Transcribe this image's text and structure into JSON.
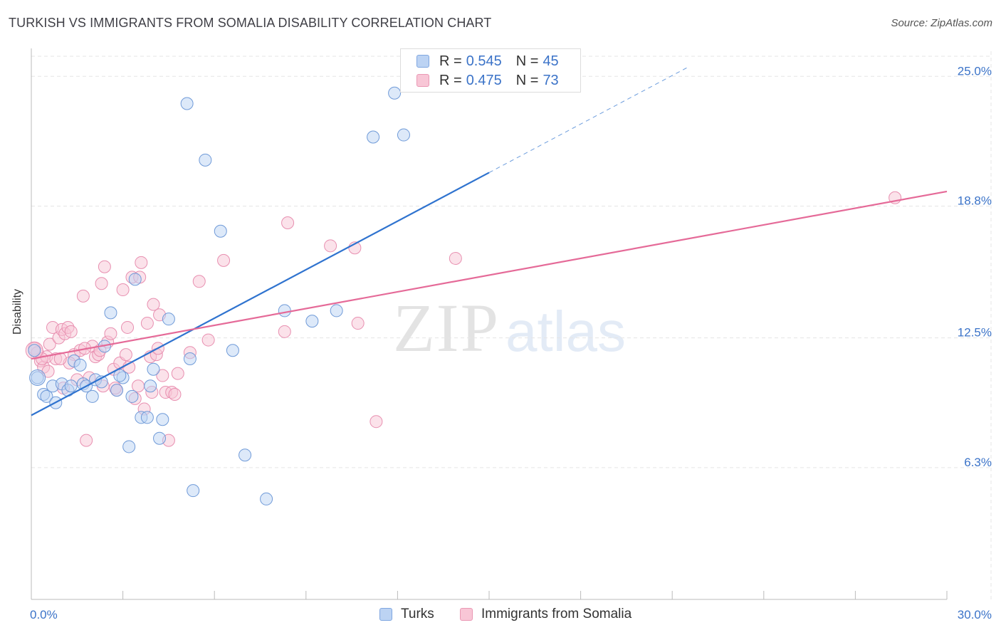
{
  "title": "TURKISH VS IMMIGRANTS FROM SOMALIA DISABILITY CORRELATION CHART",
  "source_label": "Source: ZipAtlas.com",
  "watermark": {
    "zip": "ZIP",
    "atlas": "atlas"
  },
  "stats": {
    "turks": {
      "r_label": "R =",
      "r": "0.545",
      "n_label": "N =",
      "n": "45"
    },
    "somalia": {
      "r_label": "R =",
      "r": "0.475",
      "n_label": "N =",
      "n": "73"
    }
  },
  "legend": {
    "turks": "Turks",
    "somalia": "Immigrants from Somalia"
  },
  "colors": {
    "blue_fill": "#bcd3f3",
    "blue_stroke": "#6f9ad8",
    "blue_line": "#2f73cf",
    "pink_fill": "#f8c6d6",
    "pink_stroke": "#e88fb0",
    "pink_line": "#e56a98",
    "grid": "#e5e5e5",
    "tick_text": "#3b73c8"
  },
  "chart_data": {
    "type": "scatter",
    "title": "TURKISH VS IMMIGRANTS FROM SOMALIA DISABILITY CORRELATION CHART",
    "xlabel": "",
    "ylabel": "Disability",
    "xlim": [
      0,
      30
    ],
    "ylim": [
      0,
      26.2
    ],
    "x_tick_labels": [
      {
        "value": 0,
        "label": "0.0%"
      },
      {
        "value": 30,
        "label": "30.0%"
      }
    ],
    "y_ticks": [
      {
        "value": 6.3,
        "label": "6.3%"
      },
      {
        "value": 12.5,
        "label": "12.5%"
      },
      {
        "value": 18.8,
        "label": "18.8%"
      },
      {
        "value": 25.0,
        "label": "25.0%"
      }
    ],
    "series": [
      {
        "name": "Turks",
        "r": 0.545,
        "n": 45,
        "trend": {
          "x0": 0,
          "y0": 8.8,
          "x1": 15,
          "y1": 20.4,
          "dash_to_x": 21.5
        },
        "points": [
          [
            0.1,
            11.9
          ],
          [
            0.2,
            10.6
          ],
          [
            0.4,
            9.8
          ],
          [
            0.5,
            9.7
          ],
          [
            0.7,
            10.2
          ],
          [
            0.8,
            9.4
          ],
          [
            1.0,
            10.3
          ],
          [
            1.2,
            10.0
          ],
          [
            1.3,
            10.2
          ],
          [
            1.4,
            11.4
          ],
          [
            1.6,
            11.2
          ],
          [
            1.7,
            10.3
          ],
          [
            1.8,
            10.2
          ],
          [
            2.0,
            9.7
          ],
          [
            2.1,
            10.5
          ],
          [
            2.3,
            10.4
          ],
          [
            2.4,
            12.1
          ],
          [
            2.6,
            13.7
          ],
          [
            2.8,
            10.0
          ],
          [
            3.0,
            10.6
          ],
          [
            3.2,
            7.3
          ],
          [
            3.3,
            9.7
          ],
          [
            3.4,
            15.3
          ],
          [
            3.6,
            8.7
          ],
          [
            3.8,
            8.7
          ],
          [
            3.9,
            10.2
          ],
          [
            4.0,
            11.0
          ],
          [
            4.2,
            7.7
          ],
          [
            4.3,
            8.6
          ],
          [
            4.5,
            13.4
          ],
          [
            5.1,
            23.7
          ],
          [
            5.2,
            11.5
          ],
          [
            5.3,
            5.2
          ],
          [
            5.7,
            21.0
          ],
          [
            6.2,
            17.6
          ],
          [
            6.6,
            11.9
          ],
          [
            7.0,
            6.9
          ],
          [
            7.7,
            4.8
          ],
          [
            8.3,
            13.8
          ],
          [
            9.2,
            13.3
          ],
          [
            10.0,
            13.8
          ],
          [
            11.2,
            22.1
          ],
          [
            11.9,
            24.2
          ],
          [
            12.2,
            22.2
          ],
          [
            2.9,
            10.7
          ]
        ]
      },
      {
        "name": "Immigrants from Somalia",
        "r": 0.475,
        "n": 73,
        "trend": {
          "x0": 0,
          "y0": 11.5,
          "x1": 30,
          "y1": 19.5
        },
        "points": [
          [
            0.1,
            12.0
          ],
          [
            0.2,
            11.8
          ],
          [
            0.3,
            11.4
          ],
          [
            0.4,
            11.1
          ],
          [
            0.5,
            11.6
          ],
          [
            0.6,
            12.2
          ],
          [
            0.7,
            13.0
          ],
          [
            0.8,
            11.5
          ],
          [
            0.9,
            12.5
          ],
          [
            1.0,
            12.9
          ],
          [
            1.1,
            12.7
          ],
          [
            1.2,
            13.0
          ],
          [
            1.3,
            12.8
          ],
          [
            1.4,
            11.7
          ],
          [
            1.5,
            10.5
          ],
          [
            1.6,
            11.9
          ],
          [
            1.7,
            14.5
          ],
          [
            1.8,
            7.6
          ],
          [
            1.9,
            10.6
          ],
          [
            2.0,
            12.1
          ],
          [
            2.1,
            11.6
          ],
          [
            2.2,
            11.7
          ],
          [
            2.3,
            15.1
          ],
          [
            2.4,
            15.9
          ],
          [
            2.5,
            12.3
          ],
          [
            2.6,
            12.7
          ],
          [
            2.7,
            11.0
          ],
          [
            2.8,
            10.0
          ],
          [
            2.9,
            11.3
          ],
          [
            3.0,
            14.8
          ],
          [
            3.1,
            11.7
          ],
          [
            3.2,
            11.1
          ],
          [
            3.3,
            15.4
          ],
          [
            3.4,
            9.6
          ],
          [
            3.5,
            10.2
          ],
          [
            3.6,
            16.1
          ],
          [
            3.7,
            9.1
          ],
          [
            3.8,
            13.2
          ],
          [
            3.9,
            11.6
          ],
          [
            4.0,
            14.1
          ],
          [
            4.1,
            11.7
          ],
          [
            4.2,
            13.6
          ],
          [
            4.3,
            10.7
          ],
          [
            4.4,
            9.9
          ],
          [
            4.5,
            7.6
          ],
          [
            4.6,
            9.9
          ],
          [
            4.7,
            9.8
          ],
          [
            4.8,
            10.8
          ],
          [
            5.2,
            11.8
          ],
          [
            5.5,
            15.2
          ],
          [
            5.8,
            12.4
          ],
          [
            6.3,
            16.2
          ],
          [
            8.4,
            18.0
          ],
          [
            8.3,
            12.8
          ],
          [
            9.8,
            16.9
          ],
          [
            10.6,
            16.8
          ],
          [
            10.7,
            13.2
          ],
          [
            11.3,
            8.5
          ],
          [
            13.9,
            16.3
          ],
          [
            28.3,
            19.2
          ],
          [
            0.55,
            10.9
          ],
          [
            1.05,
            10.1
          ],
          [
            2.75,
            10.1
          ],
          [
            3.15,
            13.0
          ],
          [
            2.25,
            11.9
          ],
          [
            3.55,
            15.4
          ],
          [
            1.25,
            11.3
          ],
          [
            0.95,
            11.5
          ],
          [
            2.35,
            10.2
          ],
          [
            4.15,
            12.0
          ],
          [
            3.95,
            9.9
          ],
          [
            1.75,
            12.0
          ],
          [
            0.35,
            11.5
          ]
        ]
      }
    ]
  }
}
